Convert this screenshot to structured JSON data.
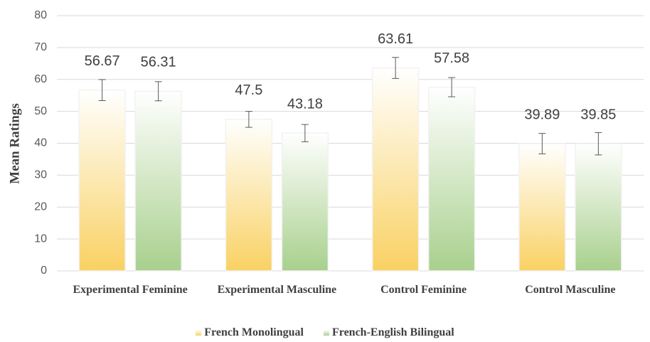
{
  "chart_data": {
    "type": "bar",
    "y_label": "Mean Ratings",
    "categories": [
      "Experimental Feminine",
      "Experimental Masculine",
      "Control Feminine",
      "Control Masculine"
    ],
    "series": [
      {
        "name": "French Monolingual",
        "color": "#f9d163",
        "values": [
          56.67,
          47.5,
          63.61,
          39.89
        ],
        "errors": [
          3.3,
          2.5,
          3.3,
          3.2
        ]
      },
      {
        "name": "French-English Bilingual",
        "color": "#a8d08d",
        "values": [
          56.31,
          43.18,
          57.58,
          39.85
        ],
        "errors": [
          3.0,
          2.7,
          3.0,
          3.5
        ]
      }
    ],
    "ylim": [
      0,
      80
    ],
    "yticks": [
      0,
      10,
      20,
      30,
      40,
      50,
      60,
      70,
      80
    ],
    "grid": true,
    "legend": "bottom"
  }
}
